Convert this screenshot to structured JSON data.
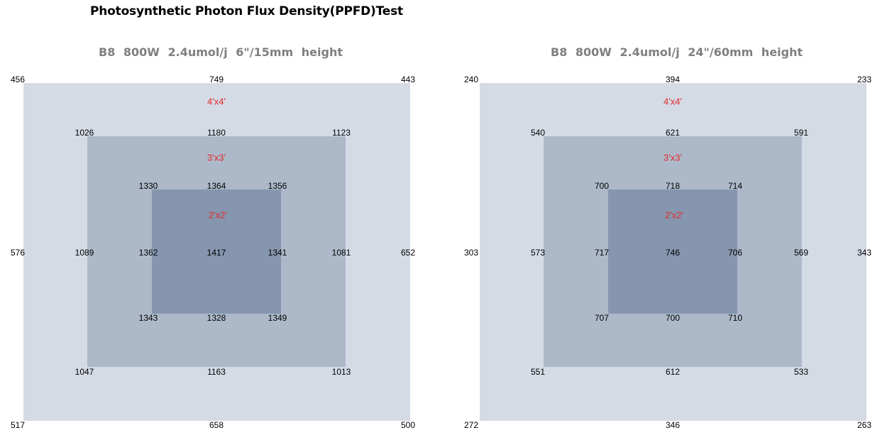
{
  "title": "Photosynthetic Photon Flux Density(PPFD)Test",
  "chart_data": [
    {
      "type": "heatmap",
      "subtitle": "B8   800W   2.4umol/j   6\"/15mm height",
      "zone_labels": [
        "4'x4'",
        "3'x3'",
        "2'x2'"
      ],
      "colors": {
        "outer": "#d5dbe5",
        "middle": "#adb9c9",
        "inner": "#8596ae",
        "zone_label": "#e02b2b"
      },
      "grid": [
        {
          "row": 0,
          "values": [
            456,
            null,
            null,
            749,
            null,
            null,
            443
          ]
        },
        {
          "row": 1,
          "values": [
            null,
            1026,
            null,
            1180,
            null,
            1123,
            null
          ]
        },
        {
          "row": 2,
          "values": [
            null,
            null,
            1330,
            1364,
            1356,
            null,
            null
          ]
        },
        {
          "row": 3,
          "values": [
            576,
            1089,
            1362,
            1417,
            1341,
            1081,
            652
          ]
        },
        {
          "row": 4,
          "values": [
            null,
            null,
            1343,
            1328,
            1349,
            null,
            null
          ]
        },
        {
          "row": 5,
          "values": [
            null,
            1047,
            null,
            1163,
            null,
            1013,
            null
          ]
        },
        {
          "row": 6,
          "values": [
            517,
            null,
            null,
            658,
            null,
            null,
            500
          ]
        }
      ]
    },
    {
      "type": "heatmap",
      "subtitle": "B8   800W   2.4umol/j   24\"/60mm height",
      "zone_labels": [
        "4'x4'",
        "3'x3'",
        "2'x2'"
      ],
      "colors": {
        "outer": "#d5dbe5",
        "middle": "#adb9c9",
        "inner": "#8596ae",
        "zone_label": "#e02b2b"
      },
      "grid": [
        {
          "row": 0,
          "values": [
            240,
            null,
            null,
            394,
            null,
            null,
            233
          ]
        },
        {
          "row": 1,
          "values": [
            null,
            540,
            null,
            621,
            null,
            591,
            null
          ]
        },
        {
          "row": 2,
          "values": [
            null,
            null,
            700,
            718,
            714,
            null,
            null
          ]
        },
        {
          "row": 3,
          "values": [
            303,
            573,
            717,
            746,
            706,
            569,
            343
          ]
        },
        {
          "row": 4,
          "values": [
            null,
            null,
            707,
            700,
            710,
            null,
            null
          ]
        },
        {
          "row": 5,
          "values": [
            null,
            551,
            null,
            612,
            null,
            533,
            null
          ]
        },
        {
          "row": 6,
          "values": [
            272,
            null,
            null,
            346,
            null,
            null,
            263
          ]
        }
      ]
    }
  ]
}
